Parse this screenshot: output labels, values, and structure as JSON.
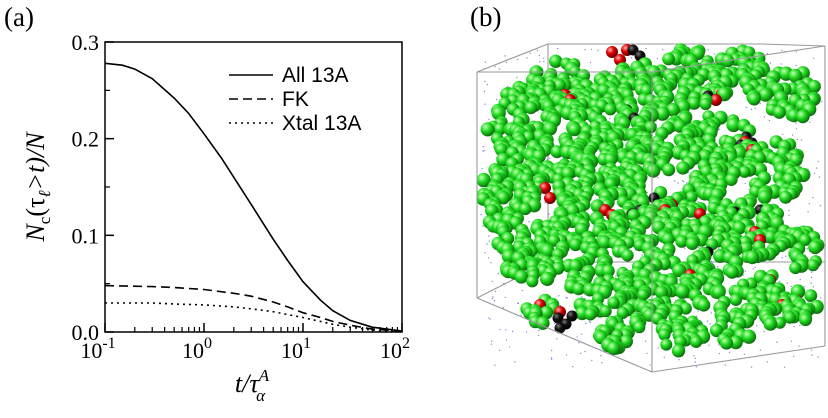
{
  "panels": {
    "a": "(a)",
    "b": "(b)"
  },
  "chart_data": {
    "type": "line",
    "title": "",
    "xlabel": "t/τ",
    "xlabel_sup": "A",
    "xlabel_sub": "α",
    "ylabel": "N",
    "ylabel_sub": "c",
    "ylabel_rest": "(τ",
    "ylabel_sub2": "ℓ",
    "ylabel_end": ">t)/N",
    "xscale": "log",
    "xlim": [
      0.1,
      100
    ],
    "ylim": [
      0.0,
      0.3
    ],
    "xticks": [
      {
        "value": 0.1,
        "base": "10",
        "exp": "-1"
      },
      {
        "value": 1,
        "base": "10",
        "exp": "0"
      },
      {
        "value": 10,
        "base": "10",
        "exp": "1"
      },
      {
        "value": 100,
        "base": "10",
        "exp": "2"
      }
    ],
    "yticks": [
      {
        "value": 0.0,
        "label": "0.0"
      },
      {
        "value": 0.1,
        "label": "0.1"
      },
      {
        "value": 0.2,
        "label": "0.2"
      },
      {
        "value": 0.3,
        "label": "0.3"
      }
    ],
    "legend_placement": "top-right",
    "series": [
      {
        "name": "All 13A",
        "style": "solid",
        "x": [
          0.1,
          0.15,
          0.2,
          0.3,
          0.5,
          0.7,
          1,
          1.5,
          2,
          3,
          5,
          7,
          10,
          15,
          20,
          30,
          50,
          70,
          100
        ],
        "y": [
          0.278,
          0.276,
          0.272,
          0.262,
          0.242,
          0.226,
          0.205,
          0.18,
          0.16,
          0.132,
          0.096,
          0.074,
          0.052,
          0.033,
          0.022,
          0.012,
          0.005,
          0.003,
          0.001
        ]
      },
      {
        "name": "FK",
        "style": "dashed",
        "x": [
          0.1,
          0.3,
          0.5,
          1,
          2,
          3,
          5,
          7,
          10,
          15,
          20,
          30,
          50,
          70,
          100
        ],
        "y": [
          0.048,
          0.047,
          0.046,
          0.044,
          0.04,
          0.037,
          0.031,
          0.026,
          0.02,
          0.015,
          0.011,
          0.007,
          0.003,
          0.002,
          0.001
        ]
      },
      {
        "name": "Xtal 13A",
        "style": "dotted",
        "x": [
          0.1,
          0.3,
          0.5,
          1,
          2,
          3,
          5,
          7,
          10,
          15,
          20,
          30,
          50,
          70,
          100
        ],
        "y": [
          0.03,
          0.03,
          0.029,
          0.028,
          0.026,
          0.024,
          0.021,
          0.018,
          0.015,
          0.011,
          0.008,
          0.005,
          0.002,
          0.001,
          0.0005
        ]
      }
    ]
  },
  "render": {
    "colors": {
      "green": "#22dd22",
      "red": "#e00000",
      "black": "#111111",
      "box": "#9a9a9a",
      "dots": "#2233aa"
    }
  }
}
